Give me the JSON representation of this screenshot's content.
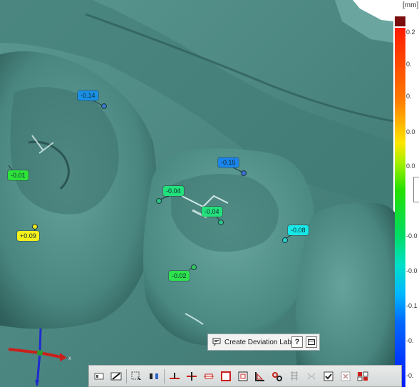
{
  "scale": {
    "unit": "[mm]",
    "ticks": [
      "0.2",
      "0.",
      "0.",
      "0.0",
      "0.0",
      "-0.0",
      "-0.0",
      "-0.1",
      "-0.",
      "-0."
    ]
  },
  "deviation_labels": [
    {
      "text": "-0.14",
      "color": "#1a8fe6"
    },
    {
      "text": "-0.15",
      "color": "#1a84ea"
    },
    {
      "text": "-0.01",
      "color": "#2ee23a"
    },
    {
      "text": "-0.04",
      "color": "#22e07a"
    },
    {
      "text": "-0.04",
      "color": "#22e07a"
    },
    {
      "text": "-0.08",
      "color": "#18e8e8"
    },
    {
      "text": "+0.09",
      "color": "#f4f01c"
    },
    {
      "text": "-0.02",
      "color": "#2de24c"
    }
  ],
  "create_popup": {
    "label": "Create Deviation Label",
    "help": "?",
    "icon": "deviation-label-icon"
  },
  "axes": {
    "x_label": "x"
  },
  "toolbar": {
    "buttons": [
      "panel-icon",
      "hide-icon",
      "select-area-icon",
      "split-icon",
      "plane-icon",
      "plane-point-icon",
      "section-icon",
      "frame-icon",
      "frame-point-icon",
      "ruler-angle-icon",
      "link-icon",
      "grid-icon",
      "grid-disabled-icon",
      "check-icon",
      "close-box-icon",
      "palette-icon"
    ]
  },
  "colors": {
    "model": "#4a8a84",
    "background": "#ffffff"
  }
}
